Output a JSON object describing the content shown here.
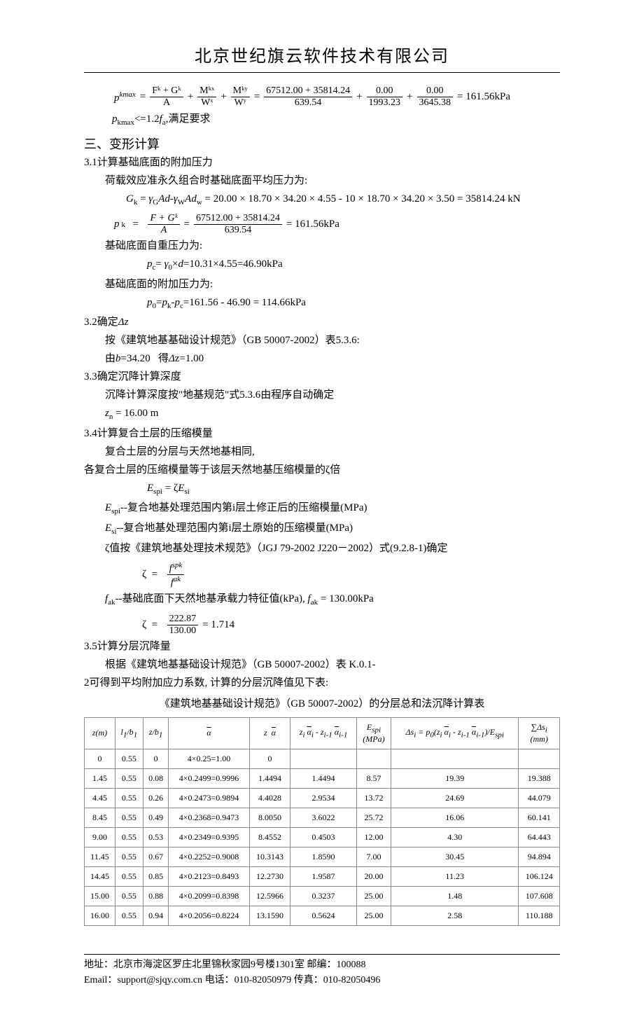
{
  "header": {
    "company": "北京世纪旗云软件技术有限公司"
  },
  "top_formula": {
    "var": "p",
    "sup": "kmax",
    "eq": " = ",
    "t1n": "Fᵏ + Gᵏ",
    "t1d": "A",
    "t2n": "Mᵏˣ",
    "t2d": "Wˣ",
    "t3n": "Mᵏʸ",
    "t3d": "Wʸ",
    "t4n": "67512.00 + 35814.24",
    "t4d": "639.54",
    "t5n": "0.00",
    "t5d": "1993.23",
    "t6n": "0.00",
    "t6d": "3645.38",
    "result": "= 161.56kPa",
    "cond": "pₖₘₐₓ<=1.2fₐ,满足要求"
  },
  "section3": {
    "title": "三、变形计算",
    "s31": {
      "h": "3.1计算基础底面的附加压力",
      "l1": "荷载效应准永久组合时基础底面平均压力为:",
      "gk_formula": "Gₖ = γ_G Ad-γ_W Ad_w = 20.00 × 18.70 × 34.20 × 4.55 - 10 × 18.70 × 34.20 × 3.50 = 35814.24 kN",
      "pk_var": "pᵏ  = ",
      "pk_n1": "F + Gᵏ",
      "pk_d1": "A",
      "pk_n2": "67512.00 + 35814.24",
      "pk_d2": "639.54",
      "pk_r": " =  161.56kPa",
      "l2": "基础底面自重压力为:",
      "pc": "p_c= γ₀×d=10.31×4.55=46.90kPa",
      "l3": "基础底面的附加压力为:",
      "p0": "p₀=pₖ-p_c=161.56 - 46.90 = 114.66kPa"
    },
    "s32": {
      "h": "3.2确定Δz",
      "l1": "按《建筑地基基础设计规范》（GB 50007-2002）表5.3.6:",
      "l2": "由b=34.20   得Δz=1.00"
    },
    "s33": {
      "h": "3.3确定沉降计算深度",
      "l1": "沉降计算深度按\"地基规范\"式5.3.6由程序自动确定",
      "l2": "zₙ = 16.00 m"
    },
    "s34": {
      "h": "3.4计算复合土层的压缩模量",
      "l1": "复合土层的分层与天然地基相同,",
      "l2": "各复合土层的压缩模量等于该层天然地基压缩模量的ζ倍",
      "f1": "E_spi = ζE_si",
      "l3": "E_spi--复合地基处理范围内第i层土修正后的压缩模量(MPa)",
      "l4": "E_si--复合地基处理范围内第i层土原始的压缩模量(MPa)",
      "l5": "ζ值按《建筑地基处理技术规范》（JGJ 79-2002 J220－2002）式(9.2.8-1)确定",
      "zeta1_var": "ζ  = ",
      "zeta1_n": "fˢᵖᵏ",
      "zeta1_d": "fᵃᵏ",
      "l6": "fₐₖ--基础底面下天然地基承载力特征值(kPa), fₐₖ = 130.00kPa",
      "zeta2_n": "222.87",
      "zeta2_d": "130.00",
      "zeta2_r": " =  1.714"
    },
    "s35": {
      "h": "3.5计算分层沉降量",
      "l1": "根据《建筑地基基础设计规范》（GB 50007-2002）表 K.0.1-",
      "l2": "2可得到平均附加应力系数, 计算的分层沉降值见下表:",
      "table_title": "《建筑地基基础设计规范》（GB 50007-2002）的分层总和法沉降计算表"
    }
  },
  "table": {
    "headers": [
      "z(m)",
      "l₁/b₁",
      "z/b₁",
      "α̅",
      "z  α̅",
      "zᵢ  α̅ᵢ - zᵢ₋₁  α̅ᵢ₋₁",
      "E_spi (MPa)",
      "Δsᵢ = p₀(zᵢ  α̅ᵢ - zᵢ₋₁  α̅ᵢ₋₁)/E_spi",
      "∑Δsᵢ (mm)"
    ],
    "rows": [
      [
        "0",
        "0.55",
        "0",
        "4×0.25=1.00",
        "0",
        "",
        "",
        "",
        ""
      ],
      [
        "1.45",
        "0.55",
        "0.08",
        "4×0.2499=0.9996",
        "1.4494",
        "1.4494",
        "8.57",
        "19.39",
        "19.388"
      ],
      [
        "4.45",
        "0.55",
        "0.26",
        "4×0.2473=0.9894",
        "4.4028",
        "2.9534",
        "13.72",
        "24.69",
        "44.079"
      ],
      [
        "8.45",
        "0.55",
        "0.49",
        "4×0.2368=0.9473",
        "8.0050",
        "3.6022",
        "25.72",
        "16.06",
        "60.141"
      ],
      [
        "9.00",
        "0.55",
        "0.53",
        "4×0.2349=0.9395",
        "8.4552",
        "0.4503",
        "12.00",
        "4.30",
        "64.443"
      ],
      [
        "11.45",
        "0.55",
        "0.67",
        "4×0.2252=0.9008",
        "10.3143",
        "1.8590",
        "7.00",
        "30.45",
        "94.894"
      ],
      [
        "14.45",
        "0.55",
        "0.85",
        "4×0.2123=0.8493",
        "12.2730",
        "1.9587",
        "20.00",
        "11.23",
        "106.124"
      ],
      [
        "15.00",
        "0.55",
        "0.88",
        "4×0.2099=0.8398",
        "12.5966",
        "0.3237",
        "25.00",
        "1.48",
        "107.608"
      ],
      [
        "16.00",
        "0.55",
        "0.94",
        "4×0.2056=0.8224",
        "13.1590",
        "0.5624",
        "25.00",
        "2.58",
        "110.188"
      ]
    ]
  },
  "footer": {
    "addr": "地址：北京市海淀区罗庄北里锦秋家园9号楼1301室   邮编：100088",
    "contact": "Email：support@sjqy.com.cn                   电话：010-82050979  传真：010-82050496"
  }
}
